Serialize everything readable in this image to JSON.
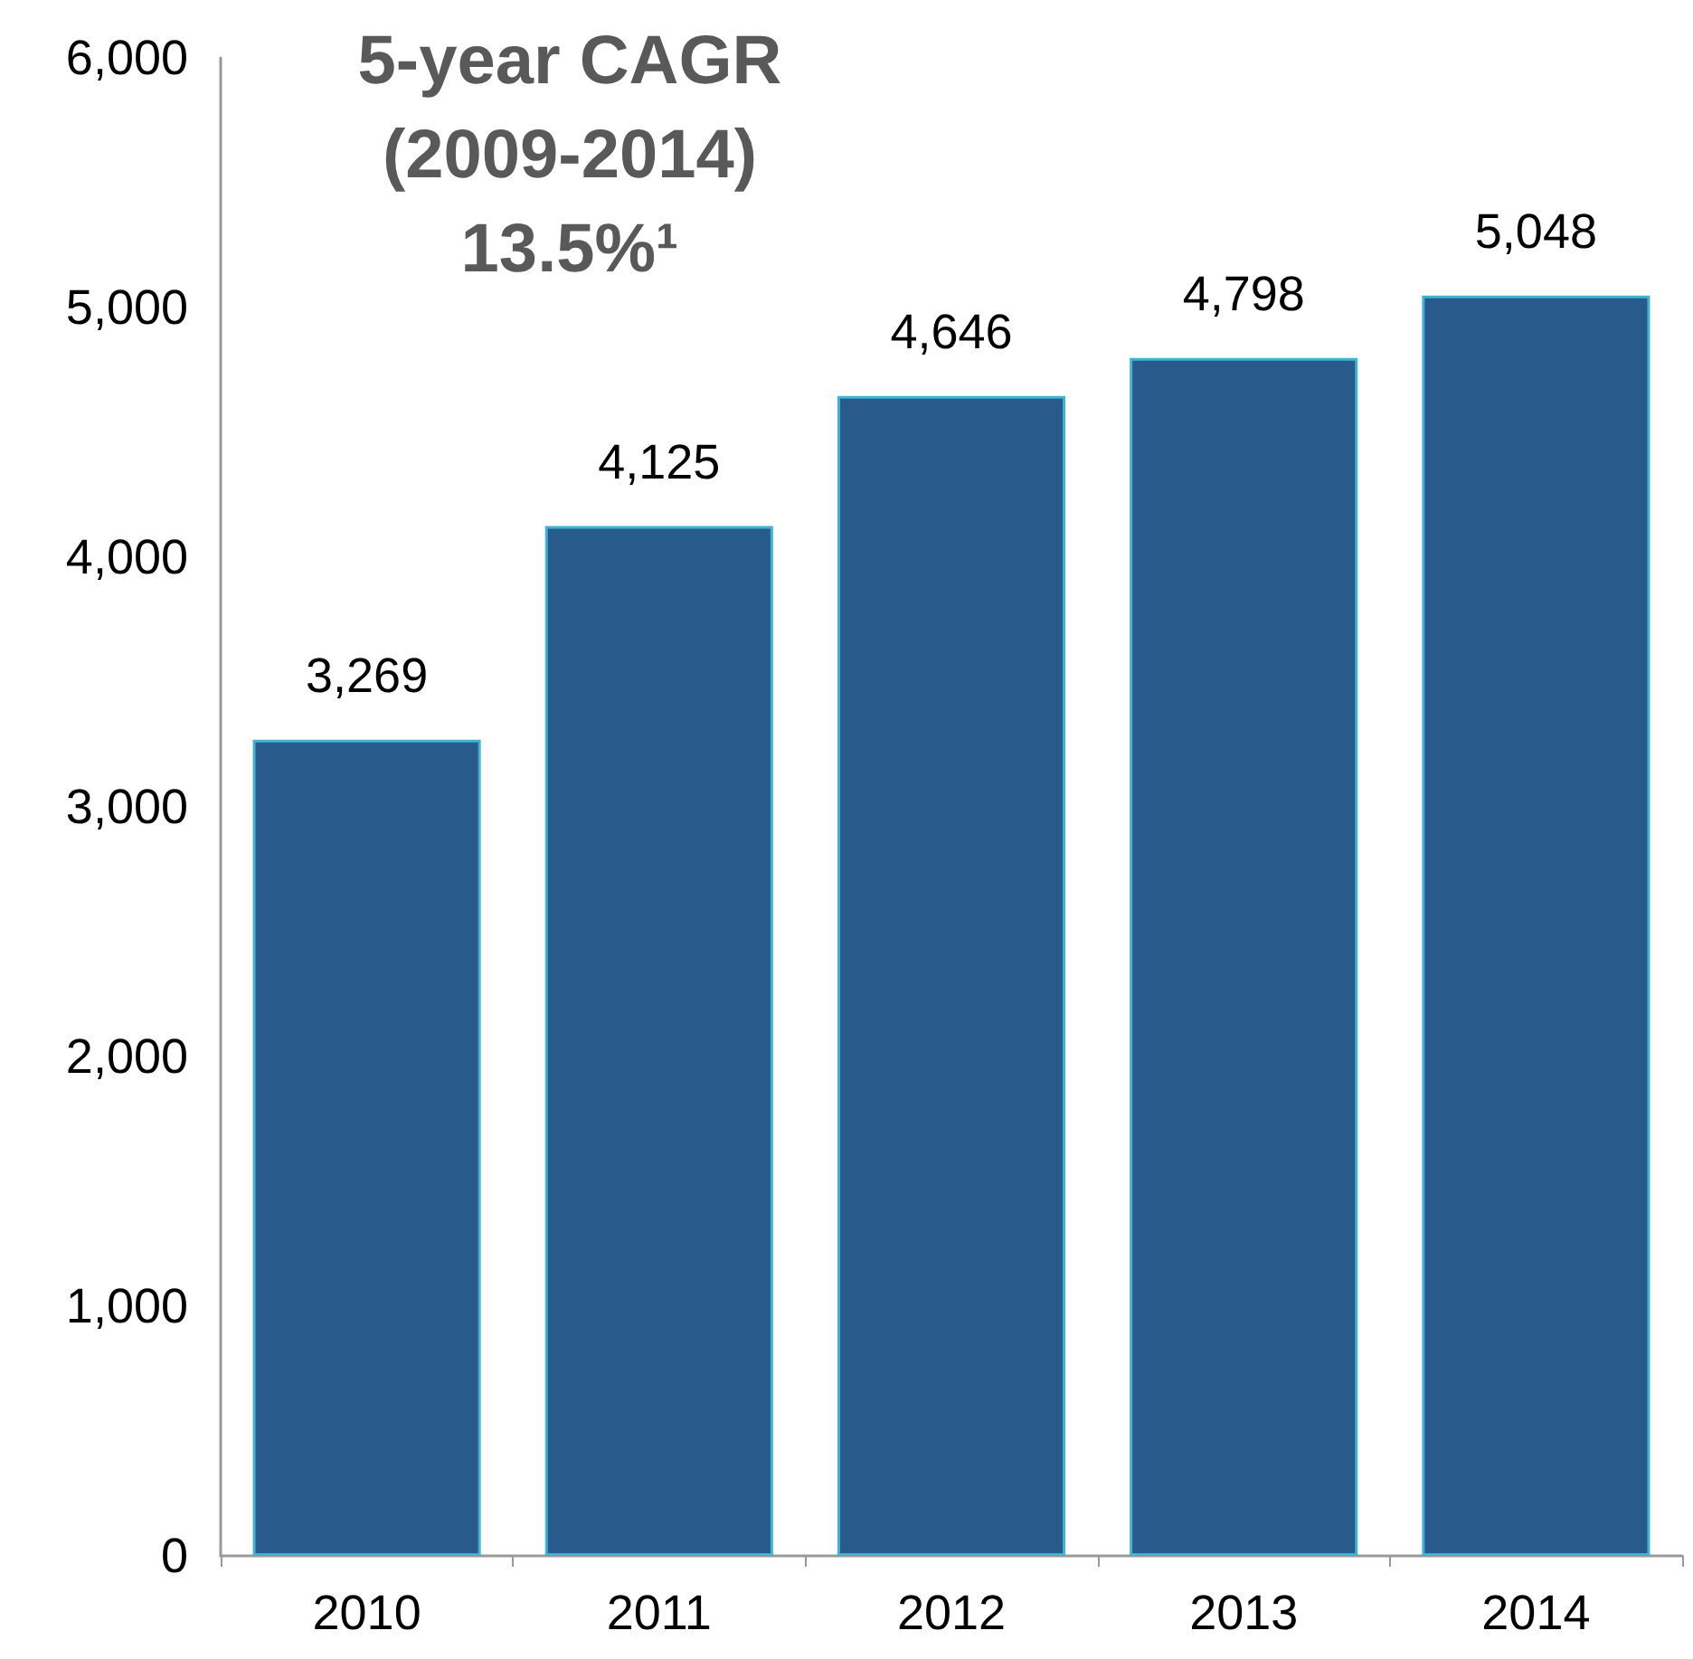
{
  "chart_data": {
    "type": "bar",
    "categories": [
      "2010",
      "2011",
      "2012",
      "2013",
      "2014"
    ],
    "values": [
      3269,
      4125,
      4646,
      4798,
      5048
    ],
    "color": "#285a8c",
    "ylim": [
      0,
      6000
    ],
    "yticks": [
      {
        "value": 0,
        "label": "0"
      },
      {
        "value": 1000,
        "label": "1,000"
      },
      {
        "value": 2000,
        "label": "2,000"
      },
      {
        "value": 3000,
        "label": "3,000"
      },
      {
        "value": 4000,
        "label": "4,000"
      },
      {
        "value": 5000,
        "label": "5,000"
      },
      {
        "value": 6000,
        "label": "6,000"
      }
    ],
    "value_labels": [
      "3,269",
      "4,125",
      "4,646",
      "4,798",
      "5,048"
    ],
    "annotations": [
      "5-year CAGR\n(2009-2014)\n13.5%¹"
    ]
  }
}
